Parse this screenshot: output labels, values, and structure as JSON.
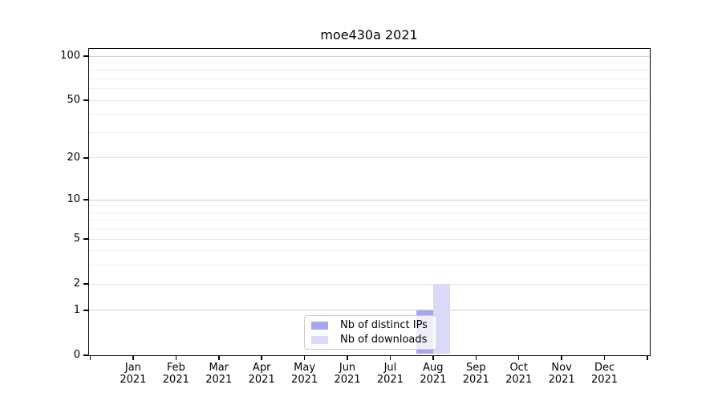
{
  "chart_data": {
    "type": "bar",
    "title": "moe430a 2021",
    "categories": [
      "Jan 2021",
      "Feb 2021",
      "Mar 2021",
      "Apr 2021",
      "May 2021",
      "Jun 2021",
      "Jul 2021",
      "Aug 2021",
      "Sep 2021",
      "Oct 2021",
      "Nov 2021",
      "Dec 2021"
    ],
    "x_tick_line1": [
      "Jan",
      "Feb",
      "Mar",
      "Apr",
      "May",
      "Jun",
      "Jul",
      "Aug",
      "Sep",
      "Oct",
      "Nov",
      "Dec"
    ],
    "x_tick_line2": "2021",
    "series": [
      {
        "name": "Nb of distinct IPs",
        "color": "#a6a6f0",
        "values": [
          0,
          0,
          0,
          0,
          0,
          0,
          0,
          1,
          0,
          0,
          0,
          0
        ]
      },
      {
        "name": "Nb of downloads",
        "color": "#d9d9f8",
        "values": [
          0,
          0,
          0,
          0,
          0,
          0,
          0,
          2,
          0,
          0,
          0,
          0
        ]
      }
    ],
    "yscale": "log1p",
    "ylim": [
      0,
      113
    ],
    "yticks_labeled": [
      0,
      1,
      2,
      5,
      10,
      20,
      50,
      100
    ],
    "yticks_minor": [
      3,
      4,
      6,
      7,
      8,
      9,
      30,
      40,
      60,
      70,
      80,
      90
    ],
    "grid": "horizontal",
    "legend_position": "inside-bottom-center"
  },
  "style_colors": {
    "background": "#ffffff",
    "axis": "#000000",
    "text": "#000000",
    "grid_major": "#cfcfcf",
    "grid_mid": "#e4e4e4",
    "grid_minor": "#efefef",
    "legend_border": "#cccccc",
    "legend_background": "rgba(255,255,255,0.8)"
  }
}
